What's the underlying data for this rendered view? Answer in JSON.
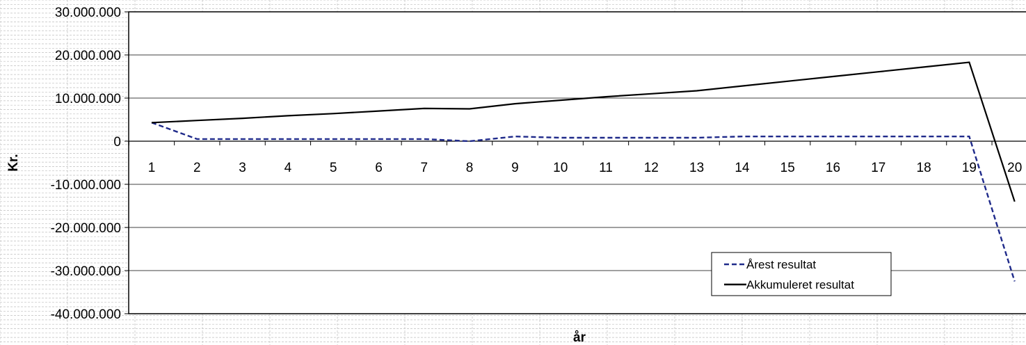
{
  "chart_data": {
    "type": "line",
    "title": "",
    "xlabel": "år",
    "ylabel": "Kr.",
    "categories": [
      "1",
      "2",
      "3",
      "4",
      "5",
      "6",
      "7",
      "8",
      "9",
      "10",
      "11",
      "12",
      "13",
      "14",
      "15",
      "16",
      "17",
      "18",
      "19",
      "20"
    ],
    "ylim": [
      -40000000,
      30000000
    ],
    "yticks": [
      30000000,
      20000000,
      10000000,
      0,
      -10000000,
      -20000000,
      -30000000,
      -40000000
    ],
    "ytick_labels": [
      "30.000.000",
      "20.000.000",
      "10.000.000",
      "0",
      "-10.000.000",
      "-20.000.000",
      "-30.000.000",
      "-40.000.000"
    ],
    "grid": true,
    "legend_position": "bottom-right",
    "series": [
      {
        "name": "Årest resultat",
        "style": "dashed",
        "color": "#1f2a8a",
        "values": [
          4300000,
          500000,
          500000,
          500000,
          500000,
          500000,
          500000,
          0,
          1100000,
          800000,
          800000,
          800000,
          800000,
          1100000,
          1100000,
          1100000,
          1100000,
          1100000,
          1100000,
          -32500000
        ]
      },
      {
        "name": "Akkumuleret resultat",
        "style": "solid",
        "color": "#000000",
        "values": [
          4300000,
          4800000,
          5300000,
          5900000,
          6400000,
          7000000,
          7600000,
          7500000,
          8700000,
          9500000,
          10300000,
          11000000,
          11700000,
          12800000,
          13900000,
          15000000,
          16100000,
          17200000,
          18300000,
          -14000000
        ]
      }
    ]
  }
}
